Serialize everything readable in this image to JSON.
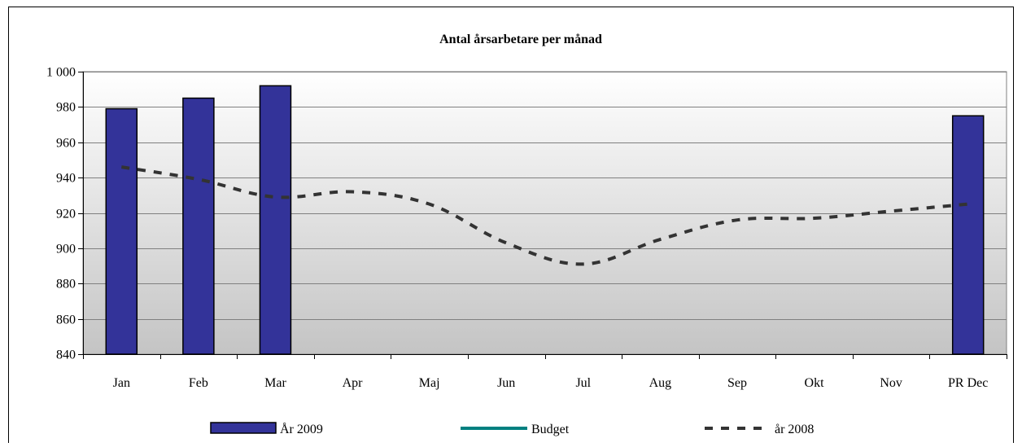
{
  "chart_data": {
    "type": "bar",
    "title": "Antal årsarbetare per månad",
    "categories": [
      "Jan",
      "Feb",
      "Mar",
      "Apr",
      "Maj",
      "Jun",
      "Jul",
      "Aug",
      "Sep",
      "Okt",
      "Nov",
      "PR Dec"
    ],
    "ylim": [
      840,
      1000
    ],
    "y_ticks": [
      840,
      860,
      880,
      900,
      920,
      940,
      960,
      980,
      1000
    ],
    "y_tick_labels": [
      "840",
      "860",
      "880",
      "900",
      "920",
      "940",
      "960",
      "980",
      "1 000"
    ],
    "grid": true,
    "legend_position": "bottom",
    "series": [
      {
        "name": "År 2009",
        "type": "bar",
        "color": "#333399",
        "values": [
          979,
          985,
          992,
          null,
          null,
          null,
          null,
          null,
          null,
          null,
          null,
          975
        ]
      },
      {
        "name": "Budget",
        "type": "line",
        "color": "#008080",
        "values": [
          null,
          null,
          null,
          null,
          null,
          null,
          null,
          null,
          null,
          null,
          null,
          null
        ]
      },
      {
        "name": "år 2008",
        "type": "line",
        "style": "dashed",
        "color": "#333333",
        "values": [
          946,
          939,
          929,
          932,
          925,
          903,
          891,
          905,
          916,
          917,
          921,
          925
        ]
      }
    ]
  }
}
